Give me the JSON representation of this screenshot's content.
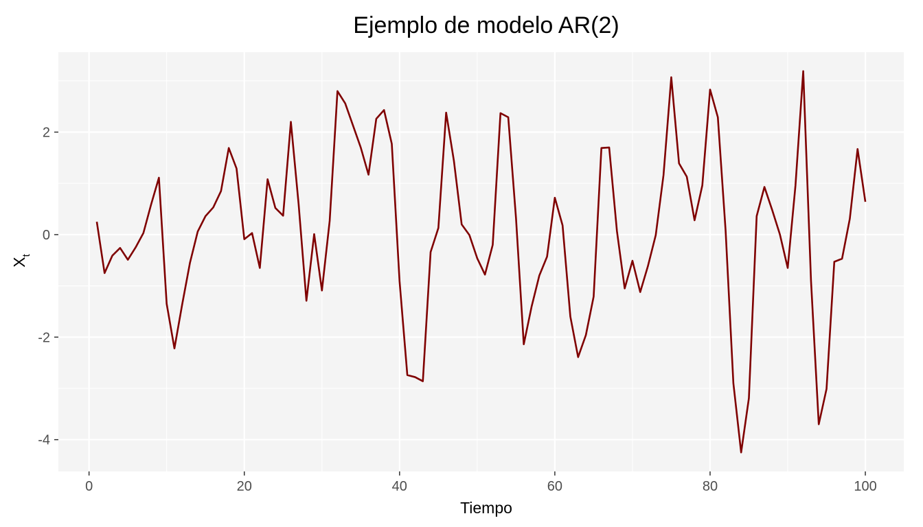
{
  "chart_data": {
    "type": "line",
    "title": "Ejemplo de modelo AR(2)",
    "xlabel": "Tiempo",
    "ylabel": "X",
    "ylabel_subscript": "t",
    "xlim": [
      -3.95,
      104.95
    ],
    "ylim": [
      -4.62,
      3.56
    ],
    "x_ticks": [
      0,
      20,
      40,
      60,
      80,
      100
    ],
    "x_tick_labels": [
      "0",
      "20",
      "40",
      "60",
      "80",
      "100"
    ],
    "y_ticks": [
      -4,
      -2,
      0,
      2
    ],
    "y_tick_labels": [
      "-4",
      "-2",
      "0",
      "2"
    ],
    "grid": true,
    "line_color": "#7f0000",
    "panel_color": "#f4f4f4",
    "grid_color": "#ffffff",
    "series": [
      {
        "x": [
          1,
          2,
          3,
          4,
          5,
          6,
          7,
          8,
          9,
          10,
          11,
          12,
          13,
          14,
          15,
          16,
          17,
          18,
          19,
          20,
          21,
          22,
          23,
          24,
          25,
          26,
          27,
          28,
          29,
          30,
          31,
          32,
          33,
          34,
          35,
          36,
          37,
          38,
          39,
          40,
          41,
          42,
          43,
          44,
          45,
          46,
          47,
          48,
          49,
          50,
          51,
          52,
          53,
          54,
          55,
          56,
          57,
          58,
          59,
          60,
          61,
          62,
          63,
          64,
          65,
          66,
          67,
          68,
          69,
          70,
          71,
          72,
          73,
          74,
          75,
          76,
          77,
          78,
          79,
          80,
          81,
          82,
          83,
          84,
          85,
          86,
          87,
          88,
          89,
          90,
          91,
          92,
          93,
          94,
          95,
          96,
          97,
          98,
          99,
          100
        ],
        "values": [
          0.25,
          -0.75,
          -0.41,
          -0.26,
          -0.49,
          -0.25,
          0.03,
          0.59,
          1.11,
          -1.35,
          -2.22,
          -1.36,
          -0.55,
          0.06,
          0.36,
          0.53,
          0.85,
          1.69,
          1.29,
          -0.09,
          0.03,
          -0.65,
          1.08,
          0.52,
          0.37,
          2.2,
          0.59,
          -1.29,
          0.01,
          -1.09,
          0.27,
          2.8,
          2.56,
          2.13,
          1.7,
          1.17,
          2.26,
          2.43,
          1.77,
          -0.91,
          -2.74,
          -2.78,
          -2.86,
          -0.34,
          0.13,
          2.38,
          1.44,
          0.2,
          -0.01,
          -0.46,
          -0.78,
          -0.2,
          2.37,
          2.29,
          0.32,
          -2.14,
          -1.41,
          -0.8,
          -0.43,
          0.72,
          0.18,
          -1.6,
          -2.39,
          -1.96,
          -1.21,
          1.69,
          1.7,
          0.07,
          -1.05,
          -0.51,
          -1.12,
          -0.61,
          -0.01,
          1.16,
          3.07,
          1.39,
          1.13,
          0.28,
          0.96,
          2.83,
          2.29,
          0.08,
          -2.9,
          -4.25,
          -3.19,
          0.36,
          0.93,
          0.48,
          0.0,
          -0.65,
          0.96,
          3.19,
          -0.9,
          -3.7,
          -3.01,
          -0.53,
          -0.47,
          0.31,
          1.67,
          0.64
        ]
      }
    ]
  }
}
